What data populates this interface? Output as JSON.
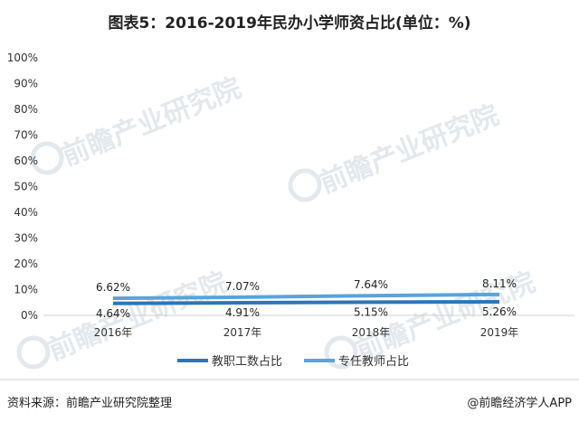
{
  "chart_data": {
    "type": "line",
    "title": "图表5：2016-2019年民办小学师资占比(单位：%)",
    "categories": [
      "2016年",
      "2017年",
      "2018年",
      "2019年"
    ],
    "series": [
      {
        "name": "教职工数占比",
        "values": [
          4.64,
          4.91,
          5.15,
          5.26
        ],
        "labels": [
          "4.64%",
          "4.91%",
          "5.15%",
          "5.26%"
        ],
        "color": "#2e75b6"
      },
      {
        "name": "专任教师占比",
        "values": [
          6.62,
          7.07,
          7.64,
          8.11
        ],
        "labels": [
          "6.62%",
          "7.07%",
          "7.64%",
          "8.11%"
        ],
        "color": "#5ba3d9"
      }
    ],
    "ylim": [
      0,
      100
    ],
    "yticks": [
      "0%",
      "10%",
      "20%",
      "30%",
      "40%",
      "50%",
      "60%",
      "70%",
      "80%",
      "90%",
      "100%"
    ],
    "legend": "bottom",
    "grid": false
  },
  "footer": {
    "source": "资料来源：前瞻产业研究院整理",
    "brand": "@前瞻经济学人APP"
  },
  "watermark": "前瞻产业研究院"
}
